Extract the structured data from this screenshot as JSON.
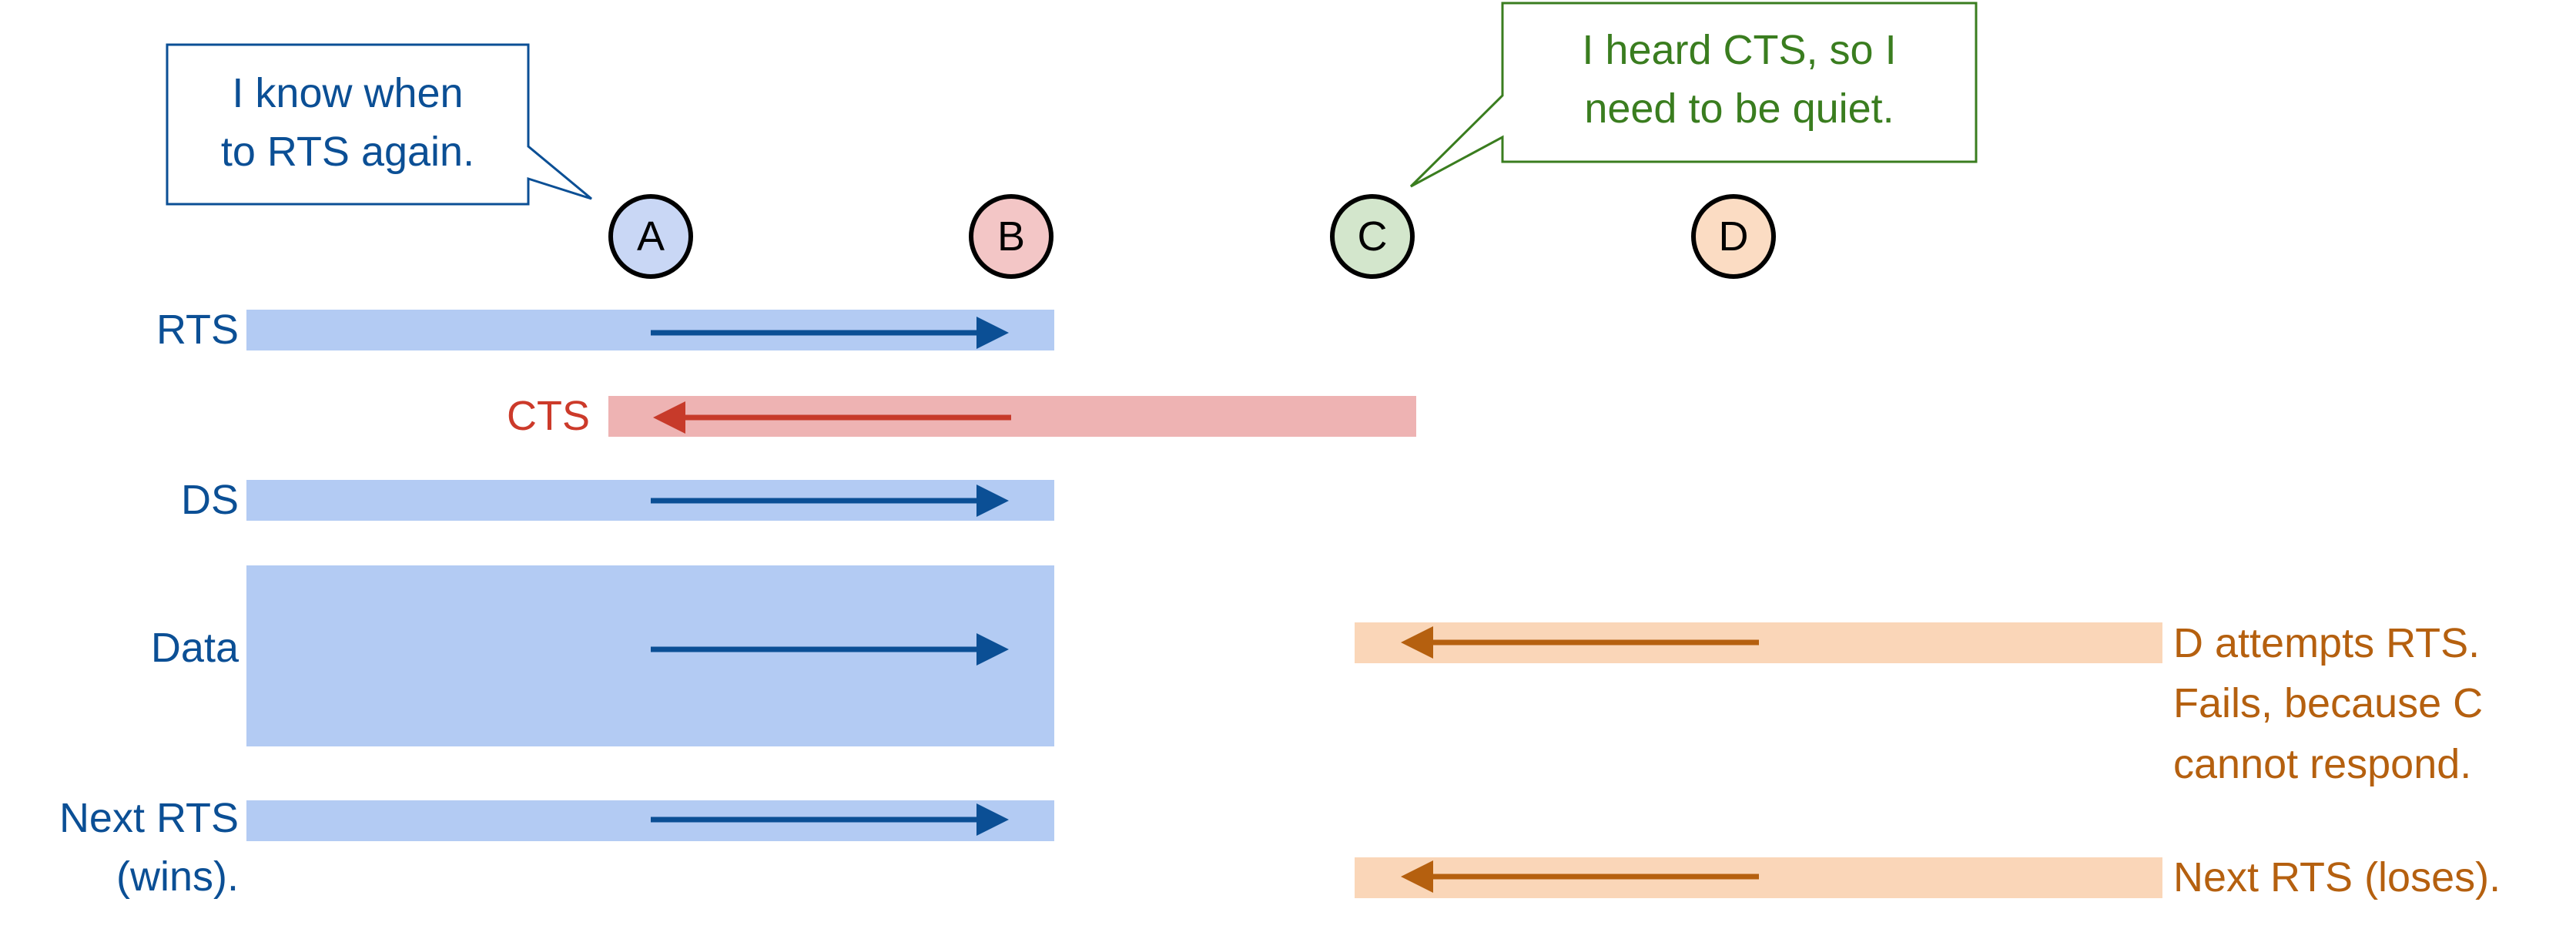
{
  "nodes": [
    {
      "id": "A",
      "label": "A",
      "fill": "#c9d7f5"
    },
    {
      "id": "B",
      "label": "B",
      "fill": "#f3c6c6"
    },
    {
      "id": "C",
      "label": "C",
      "fill": "#d3e6cc"
    },
    {
      "id": "D",
      "label": "D",
      "fill": "#fbdcc3"
    }
  ],
  "frames": {
    "rts": {
      "label": "RTS"
    },
    "cts": {
      "label": "CTS"
    },
    "ds": {
      "label": "DS"
    },
    "data": {
      "label": "Data"
    },
    "next_rts_wins": {
      "label": "Next RTS\n(wins)."
    },
    "d_rts": {
      "label": "D attempts RTS.\nFails, because C\ncannot respond."
    },
    "d_next_rts": {
      "label": "Next RTS (loses)."
    }
  },
  "callouts": {
    "a": {
      "text": "I know when\nto RTS again."
    },
    "c": {
      "text": "I heard CTS, so I\nneed to be quiet."
    }
  },
  "colors": {
    "blue_text": "#0b4f95",
    "blue_band": "#b3cbf3",
    "blue_arrow": "#0b4f95",
    "red_text": "#cc3a2a",
    "red_band": "#eeb3b3",
    "red_arrow": "#c73a2a",
    "green_text": "#3a7d1f",
    "green_border": "#3a7d1f",
    "orange_text": "#b5600f",
    "orange_band": "#fad6b8",
    "orange_arrow": "#b5600f"
  }
}
